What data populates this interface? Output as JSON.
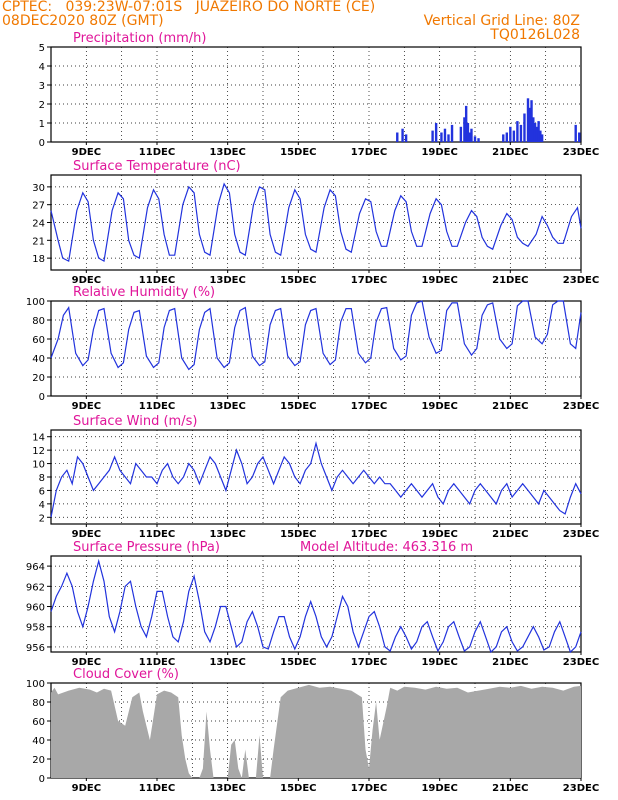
{
  "header": {
    "line1": "CPTEC:   039:23W-07:01S   JUAZEIRO DO NORTE (CE)",
    "line2": "08DEC2020 80Z (GMT)",
    "right1": "Vertical Grid Line: 80Z",
    "right2": "TQ0126L028"
  },
  "colors": {
    "header": "#f07800",
    "title": "#e0169a",
    "series": "#2233dd",
    "cloud": "#a8a8a8"
  },
  "chart_data": [
    {
      "type": "bar",
      "title": "Precipitation (mm/h)",
      "ylim": [
        0,
        5
      ],
      "yticks": [
        0,
        1,
        2,
        3,
        4,
        5
      ],
      "xlim": [
        8.0,
        23.0
      ],
      "xtick_labels": [
        "9DEC",
        "11DEC",
        "13DEC",
        "15DEC",
        "17DEC",
        "19DEC",
        "21DEC",
        "23DEC"
      ],
      "x": [
        17.8,
        17.95,
        18.05,
        18.8,
        18.9,
        19.05,
        19.15,
        19.25,
        19.35,
        19.6,
        19.7,
        19.75,
        19.8,
        19.85,
        19.9,
        20.0,
        20.1,
        20.8,
        20.9,
        21.0,
        21.1,
        21.2,
        21.3,
        21.4,
        21.5,
        21.55,
        21.6,
        21.65,
        21.7,
        21.75,
        21.8,
        21.85,
        21.9,
        22.85,
        22.95
      ],
      "values": [
        0.5,
        0.7,
        0.4,
        0.6,
        1.0,
        0.5,
        0.7,
        0.4,
        0.9,
        0.8,
        1.3,
        1.9,
        1.0,
        0.5,
        0.7,
        0.3,
        0.2,
        0.4,
        0.5,
        0.8,
        0.6,
        1.1,
        0.9,
        1.5,
        2.3,
        1.8,
        2.2,
        1.3,
        1.0,
        0.8,
        1.1,
        0.6,
        0.4,
        0.9,
        0.5
      ]
    },
    {
      "type": "line",
      "title": "Surface Temperature (nC)",
      "ylim": [
        16,
        32
      ],
      "yticks": [
        18,
        21,
        24,
        27,
        30
      ],
      "xlim": [
        8.0,
        23.0
      ],
      "xtick_labels": [
        "9DEC",
        "11DEC",
        "13DEC",
        "15DEC",
        "17DEC",
        "19DEC",
        "21DEC",
        "23DEC"
      ],
      "x": [
        8.0,
        8.2,
        8.33,
        8.5,
        8.73,
        8.9,
        9.05,
        9.2,
        9.35,
        9.5,
        9.73,
        9.9,
        10.05,
        10.2,
        10.35,
        10.5,
        10.73,
        10.9,
        11.05,
        11.2,
        11.35,
        11.5,
        11.73,
        11.9,
        12.05,
        12.2,
        12.35,
        12.5,
        12.73,
        12.9,
        13.05,
        13.2,
        13.35,
        13.5,
        13.73,
        13.9,
        14.05,
        14.2,
        14.35,
        14.5,
        14.73,
        14.9,
        15.05,
        15.2,
        15.35,
        15.5,
        15.73,
        15.9,
        16.05,
        16.2,
        16.35,
        16.5,
        16.73,
        16.9,
        17.05,
        17.2,
        17.35,
        17.5,
        17.73,
        17.9,
        18.05,
        18.2,
        18.35,
        18.5,
        18.73,
        18.9,
        19.05,
        19.2,
        19.35,
        19.5,
        19.73,
        19.9,
        20.05,
        20.2,
        20.35,
        20.5,
        20.73,
        20.9,
        21.05,
        21.2,
        21.35,
        21.5,
        21.73,
        21.9,
        22.05,
        22.2,
        22.35,
        22.5,
        22.73,
        22.9,
        23.0
      ],
      "values": [
        26,
        21,
        18,
        17.5,
        26,
        29,
        27.5,
        21,
        18,
        17.5,
        26,
        29,
        28,
        21,
        18.5,
        18,
        26.5,
        29.5,
        28,
        22,
        18.5,
        18.5,
        27,
        30,
        29,
        22,
        19,
        18.5,
        27,
        30.5,
        29,
        22,
        19,
        18.5,
        27,
        30,
        29.5,
        22,
        19,
        18.5,
        26.5,
        29.5,
        28,
        22,
        19.5,
        19,
        26.5,
        29.5,
        28.5,
        22.5,
        19.5,
        19,
        25.5,
        28,
        27.5,
        22.5,
        20,
        20,
        26,
        28.5,
        27.5,
        22.5,
        20,
        20,
        25.5,
        28,
        27,
        22.5,
        20,
        20,
        24,
        26,
        25,
        21.5,
        20,
        19.5,
        23.5,
        25.5,
        24.5,
        21.5,
        20.5,
        20,
        22,
        25,
        23.5,
        21.5,
        20.5,
        20.5,
        25,
        26.5,
        23
      ]
    },
    {
      "type": "line",
      "title": "Relative Humidity (%)",
      "ylim": [
        0,
        100
      ],
      "yticks": [
        0,
        20,
        40,
        60,
        80,
        100
      ],
      "xlim": [
        8.0,
        23.0
      ],
      "xtick_labels": [
        "9DEC",
        "11DEC",
        "13DEC",
        "15DEC",
        "17DEC",
        "19DEC",
        "21DEC",
        "23DEC"
      ],
      "x": [
        8.0,
        8.2,
        8.35,
        8.5,
        8.7,
        8.9,
        9.05,
        9.2,
        9.35,
        9.5,
        9.7,
        9.9,
        10.05,
        10.2,
        10.35,
        10.5,
        10.7,
        10.9,
        11.05,
        11.2,
        11.35,
        11.5,
        11.7,
        11.9,
        12.05,
        12.2,
        12.35,
        12.5,
        12.7,
        12.9,
        13.05,
        13.2,
        13.35,
        13.5,
        13.7,
        13.9,
        14.05,
        14.2,
        14.35,
        14.5,
        14.7,
        14.9,
        15.05,
        15.2,
        15.35,
        15.5,
        15.7,
        15.9,
        16.05,
        16.2,
        16.35,
        16.5,
        16.7,
        16.9,
        17.05,
        17.2,
        17.35,
        17.5,
        17.7,
        17.9,
        18.05,
        18.2,
        18.35,
        18.5,
        18.7,
        18.9,
        19.05,
        19.2,
        19.35,
        19.5,
        19.7,
        19.9,
        20.05,
        20.2,
        20.35,
        20.5,
        20.7,
        20.9,
        21.05,
        21.2,
        21.35,
        21.5,
        21.7,
        21.9,
        22.05,
        22.2,
        22.35,
        22.5,
        22.7,
        22.85,
        23.0
      ],
      "values": [
        40,
        60,
        85,
        93,
        45,
        32,
        38,
        70,
        90,
        92,
        45,
        30,
        35,
        70,
        88,
        90,
        42,
        30,
        35,
        72,
        90,
        92,
        40,
        28,
        33,
        70,
        88,
        92,
        40,
        30,
        35,
        72,
        90,
        93,
        42,
        32,
        36,
        75,
        90,
        92,
        42,
        32,
        36,
        75,
        90,
        92,
        45,
        33,
        38,
        78,
        92,
        92,
        45,
        35,
        40,
        78,
        92,
        93,
        50,
        38,
        42,
        85,
        98,
        100,
        62,
        45,
        48,
        90,
        98,
        98,
        55,
        43,
        50,
        85,
        96,
        98,
        60,
        50,
        55,
        95,
        100,
        100,
        62,
        55,
        65,
        96,
        100,
        100,
        55,
        50,
        88
      ]
    },
    {
      "type": "line",
      "title": "Surface Wind (m/s)",
      "ylim": [
        1,
        15
      ],
      "yticks": [
        2,
        4,
        6,
        8,
        10,
        12,
        14
      ],
      "xlim": [
        8.0,
        23.0
      ],
      "xtick_labels": [
        "9DEC",
        "11DEC",
        "13DEC",
        "15DEC",
        "17DEC",
        "19DEC",
        "21DEC",
        "23DEC"
      ],
      "x": [
        8.0,
        8.15,
        8.3,
        8.45,
        8.6,
        8.75,
        8.9,
        9.05,
        9.2,
        9.35,
        9.5,
        9.65,
        9.8,
        9.95,
        10.1,
        10.25,
        10.4,
        10.55,
        10.7,
        10.85,
        11.0,
        11.15,
        11.3,
        11.45,
        11.6,
        11.75,
        11.9,
        12.05,
        12.2,
        12.35,
        12.5,
        12.65,
        12.8,
        12.95,
        13.1,
        13.25,
        13.4,
        13.55,
        13.7,
        13.85,
        14.0,
        14.15,
        14.3,
        14.45,
        14.6,
        14.75,
        14.9,
        15.05,
        15.2,
        15.35,
        15.5,
        15.65,
        15.8,
        15.95,
        16.1,
        16.25,
        16.4,
        16.55,
        16.7,
        16.85,
        17.0,
        17.15,
        17.3,
        17.45,
        17.6,
        17.75,
        17.9,
        18.05,
        18.2,
        18.35,
        18.5,
        18.65,
        18.8,
        18.95,
        19.1,
        19.25,
        19.4,
        19.55,
        19.7,
        19.85,
        20.0,
        20.15,
        20.3,
        20.45,
        20.6,
        20.75,
        20.9,
        21.05,
        21.2,
        21.35,
        21.5,
        21.65,
        21.8,
        21.95,
        22.1,
        22.25,
        22.4,
        22.55,
        22.7,
        22.85,
        23.0
      ],
      "values": [
        2,
        6,
        8,
        9,
        7,
        11,
        10,
        8,
        6,
        7,
        8,
        9,
        11,
        9,
        8,
        7,
        10,
        9,
        8,
        8,
        7,
        9,
        10,
        8,
        7,
        8,
        10,
        9,
        7,
        9,
        11,
        10,
        8,
        6,
        9,
        12,
        10,
        7,
        8,
        10,
        11,
        9,
        7,
        9,
        11,
        10,
        8,
        7,
        9,
        10,
        13,
        10,
        8,
        6,
        8,
        9,
        8,
        7,
        8,
        9,
        8,
        7,
        8,
        7,
        7,
        6,
        5,
        6,
        7,
        6,
        5,
        6,
        7,
        5,
        4,
        6,
        7,
        6,
        5,
        4,
        6,
        7,
        6,
        5,
        4,
        6,
        7,
        5,
        6,
        7,
        6,
        5,
        4,
        6,
        5,
        4,
        3,
        2.5,
        5,
        7,
        5.5
      ]
    },
    {
      "type": "line",
      "title": "Surface Pressure (hPa)",
      "annotation": "Model Altitude: 463.316 m",
      "ylim": [
        955.5,
        965.0
      ],
      "yticks": [
        956,
        958,
        960,
        962,
        964
      ],
      "xlim": [
        8.0,
        23.0
      ],
      "xtick_labels": [
        "9DEC",
        "11DEC",
        "13DEC",
        "15DEC",
        "17DEC",
        "19DEC",
        "21DEC",
        "23DEC"
      ],
      "x": [
        8.0,
        8.15,
        8.3,
        8.45,
        8.6,
        8.75,
        8.9,
        9.05,
        9.2,
        9.35,
        9.5,
        9.65,
        9.8,
        9.95,
        10.1,
        10.25,
        10.4,
        10.55,
        10.7,
        10.85,
        11.0,
        11.15,
        11.3,
        11.45,
        11.6,
        11.75,
        11.9,
        12.05,
        12.2,
        12.35,
        12.5,
        12.65,
        12.8,
        12.95,
        13.1,
        13.25,
        13.4,
        13.55,
        13.7,
        13.85,
        14.0,
        14.15,
        14.3,
        14.45,
        14.6,
        14.75,
        14.9,
        15.05,
        15.2,
        15.35,
        15.5,
        15.65,
        15.8,
        15.95,
        16.1,
        16.25,
        16.4,
        16.55,
        16.7,
        16.85,
        17.0,
        17.15,
        17.3,
        17.45,
        17.6,
        17.75,
        17.9,
        18.05,
        18.2,
        18.35,
        18.5,
        18.65,
        18.8,
        18.95,
        19.1,
        19.25,
        19.4,
        19.55,
        19.7,
        19.85,
        20.0,
        20.15,
        20.3,
        20.45,
        20.6,
        20.75,
        20.9,
        21.05,
        21.2,
        21.35,
        21.5,
        21.65,
        21.8,
        21.95,
        22.1,
        22.25,
        22.4,
        22.55,
        22.7,
        22.85,
        23.0
      ],
      "values": [
        959.5,
        961,
        962,
        963.3,
        962,
        959.5,
        958,
        960,
        962.5,
        964.5,
        962.5,
        959,
        957.5,
        959.5,
        962,
        962.5,
        960,
        958,
        957,
        959,
        961.5,
        961.5,
        959,
        957,
        956.5,
        958.5,
        961.5,
        963,
        960.5,
        957.5,
        956.5,
        958,
        960,
        960,
        958,
        956,
        956.5,
        958.5,
        959.5,
        958,
        956,
        955.8,
        957.5,
        959,
        959,
        957,
        955.8,
        957,
        959,
        960.5,
        959,
        957,
        956,
        957,
        959,
        961,
        960,
        957.5,
        956,
        957.5,
        959,
        959.5,
        958,
        956,
        955.6,
        957,
        958,
        957,
        955.8,
        956.5,
        958,
        958.5,
        957,
        955.6,
        956.5,
        958,
        958.5,
        957,
        955.6,
        956,
        957.5,
        958.5,
        957,
        955.5,
        956,
        957.5,
        958,
        956.5,
        955.6,
        956,
        957,
        958,
        957,
        955.7,
        956,
        957.5,
        958.5,
        957,
        955.5,
        956,
        957.5
      ]
    },
    {
      "type": "area",
      "title": "Cloud Cover (%)",
      "ylim": [
        0,
        100
      ],
      "yticks": [
        0,
        20,
        40,
        60,
        80,
        100
      ],
      "xlim": [
        8.0,
        23.0
      ],
      "xtick_labels": [
        "9DEC",
        "11DEC",
        "13DEC",
        "15DEC",
        "17DEC",
        "19DEC",
        "21DEC",
        "23DEC"
      ],
      "x": [
        8.0,
        8.1,
        8.2,
        8.5,
        8.8,
        9.1,
        9.3,
        9.5,
        9.7,
        9.9,
        10.1,
        10.3,
        10.5,
        10.6,
        10.8,
        11.0,
        11.2,
        11.4,
        11.6,
        11.7,
        11.8,
        11.9,
        12.0,
        12.1,
        12.2,
        12.3,
        12.4,
        12.5,
        12.6,
        12.7,
        12.8,
        12.9,
        13.0,
        13.1,
        13.2,
        13.3,
        13.4,
        13.5,
        13.6,
        13.7,
        13.8,
        13.9,
        14.0,
        14.1,
        14.2,
        14.3,
        14.5,
        14.7,
        15.0,
        15.3,
        15.6,
        15.9,
        16.2,
        16.5,
        16.8,
        16.9,
        17.0,
        17.1,
        17.2,
        17.3,
        17.5,
        17.6,
        17.8,
        18.0,
        18.3,
        18.6,
        18.9,
        19.2,
        19.5,
        19.8,
        20.1,
        20.4,
        20.7,
        21.0,
        21.3,
        21.6,
        21.9,
        22.2,
        22.5,
        22.8,
        23.0
      ],
      "values": [
        90,
        95,
        88,
        92,
        95,
        93,
        90,
        94,
        92,
        60,
        55,
        85,
        90,
        70,
        40,
        88,
        92,
        90,
        85,
        45,
        20,
        5,
        0,
        0,
        0,
        10,
        70,
        30,
        0,
        0,
        0,
        0,
        0,
        35,
        40,
        10,
        0,
        30,
        0,
        0,
        0,
        45,
        0,
        0,
        0,
        30,
        85,
        92,
        95,
        98,
        95,
        96,
        94,
        92,
        85,
        30,
        10,
        50,
        80,
        40,
        75,
        95,
        92,
        96,
        95,
        93,
        96,
        94,
        95,
        90,
        92,
        94,
        96,
        95,
        97,
        94,
        96,
        95,
        92,
        96,
        97
      ]
    }
  ]
}
